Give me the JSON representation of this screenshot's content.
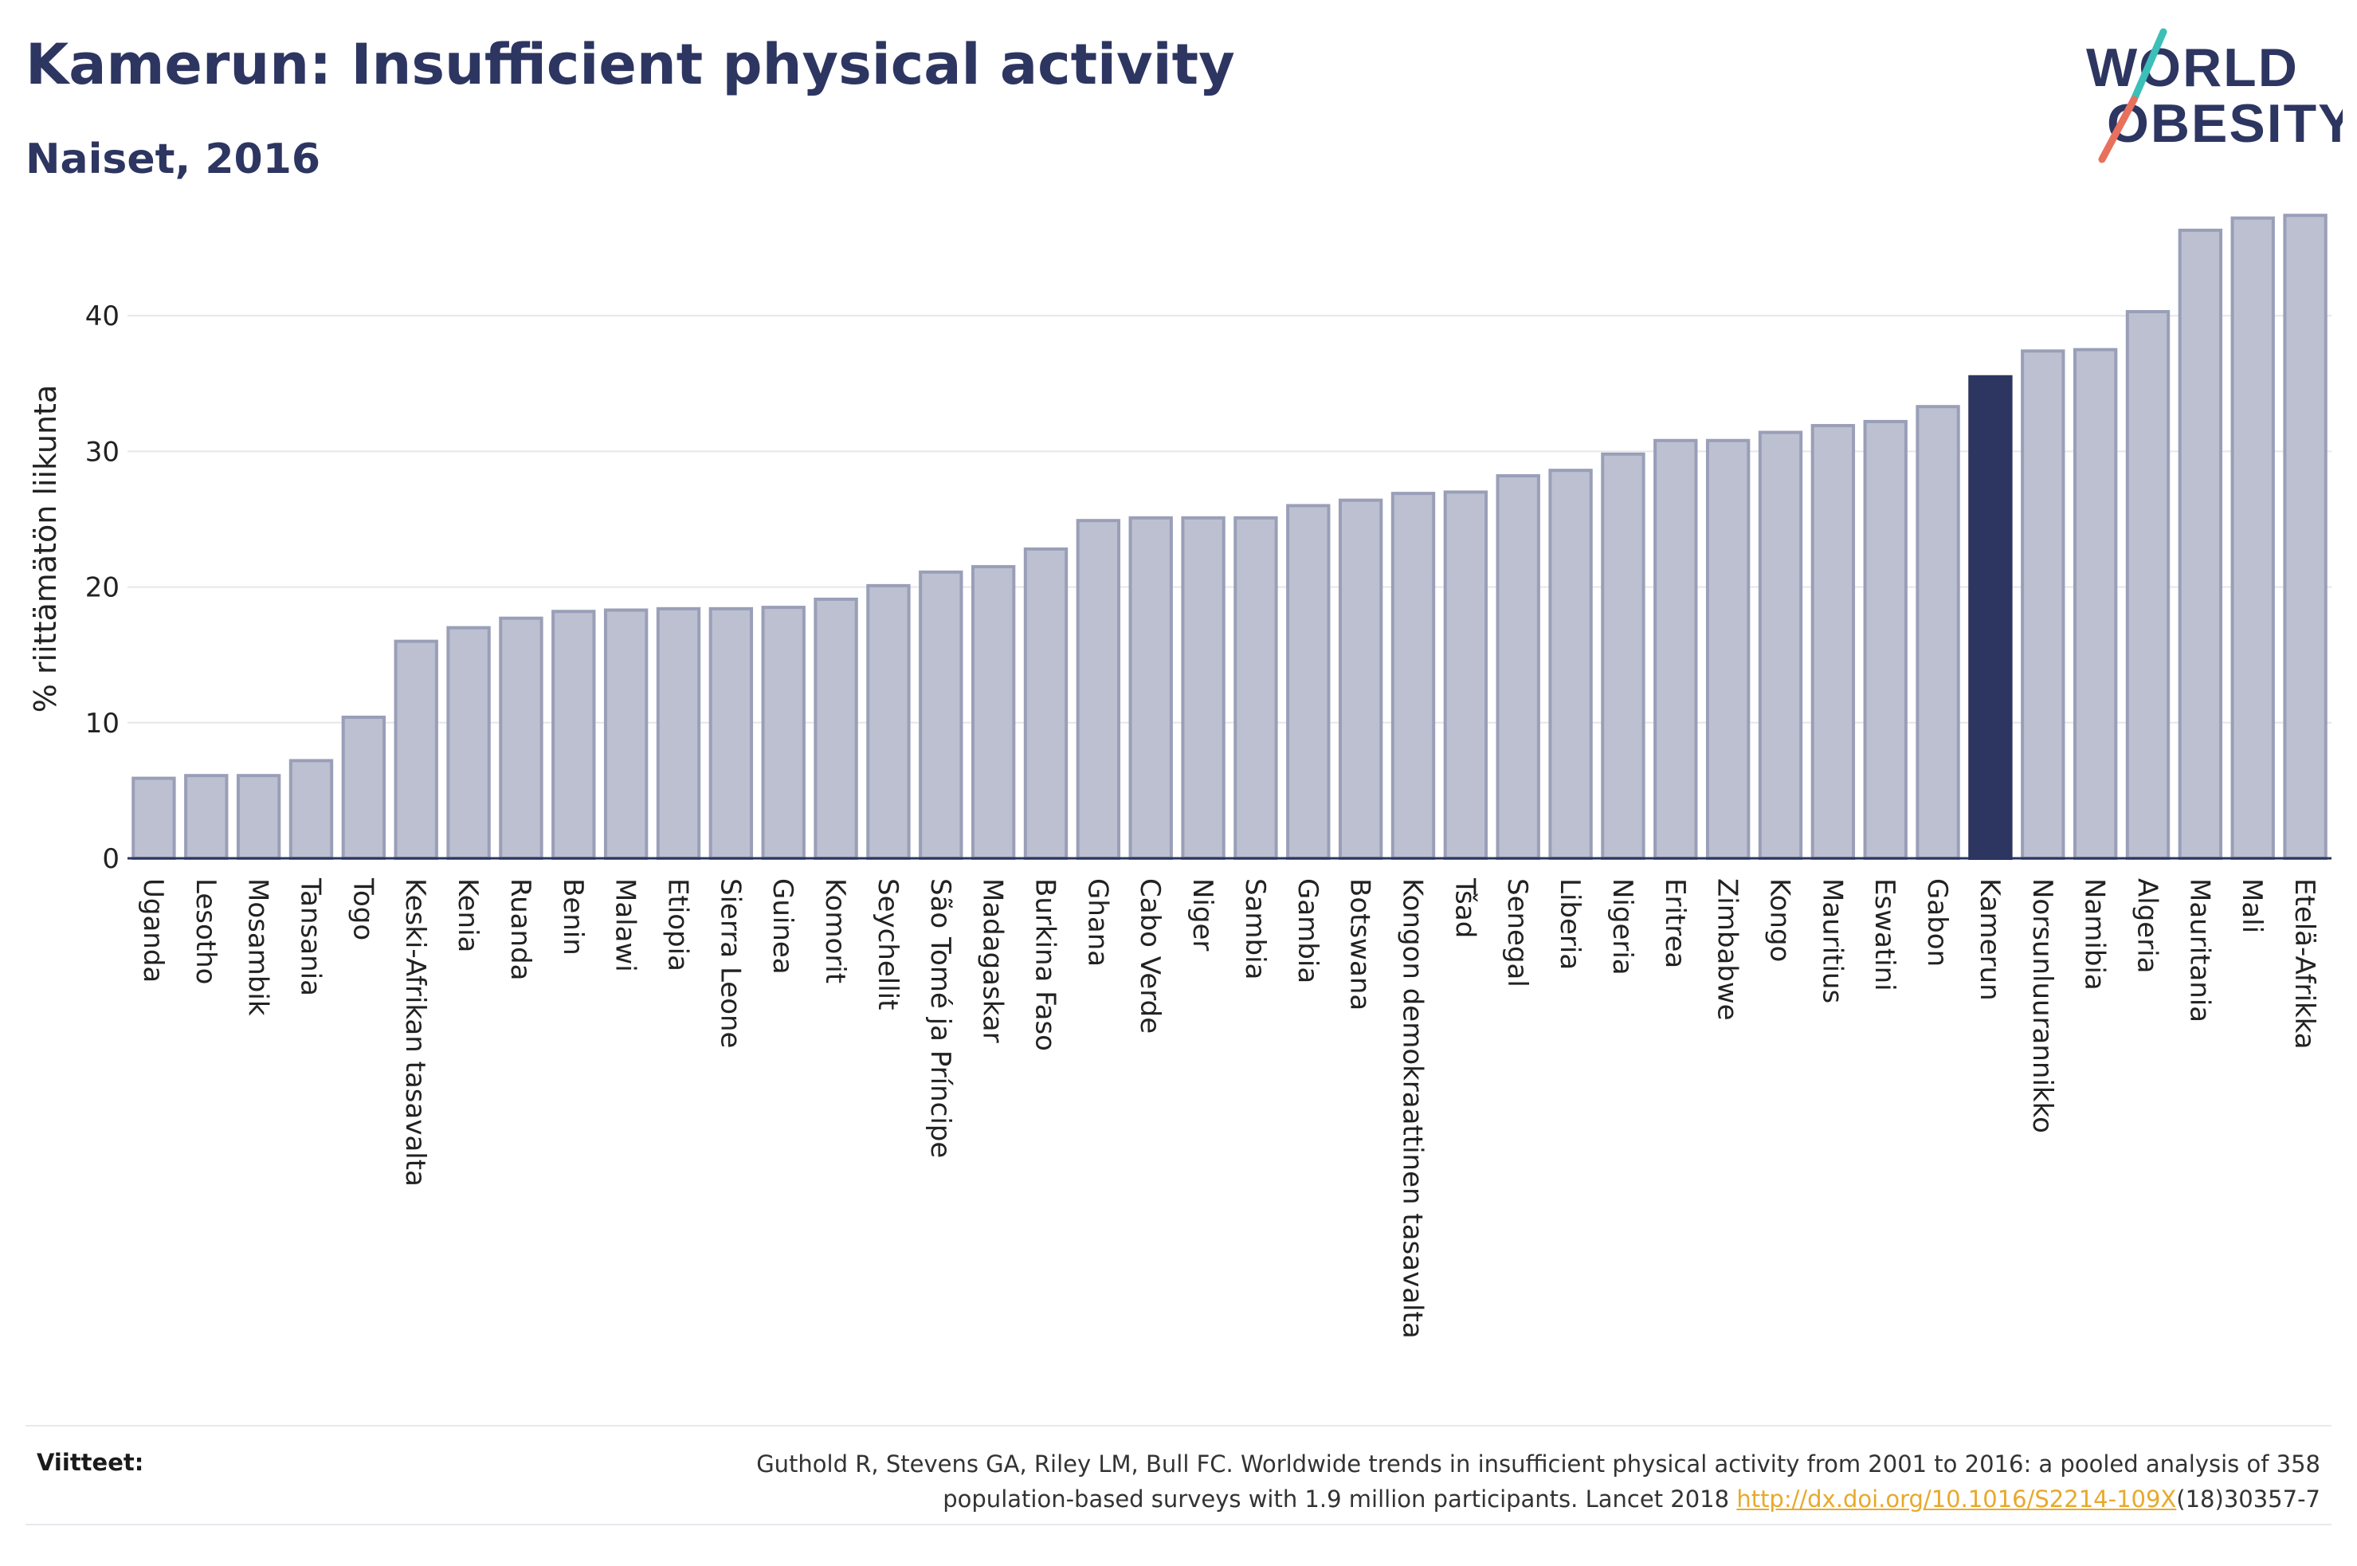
{
  "header": {
    "title": "Kamerun: Insufficient physical activity",
    "subtitle": "Naiset, 2016"
  },
  "logo": {
    "line1": "WORLD",
    "line2": "OBESITY"
  },
  "colors": {
    "bar": "#bcc0d0",
    "bar_stroke": "#9a9fb8",
    "highlight": "#2d3561",
    "text": "#2d3561",
    "grid": "#e6e6ec",
    "link": "#e8a92b"
  },
  "chart_data": {
    "type": "bar",
    "title": "Kamerun: Insufficient physical activity",
    "subtitle": "Naiset, 2016",
    "xlabel": "",
    "ylabel": "% riittämätön liikunta",
    "ylim": [
      0,
      48
    ],
    "yticks": [
      0,
      10,
      20,
      30,
      40
    ],
    "grid": true,
    "highlight": "Kamerun",
    "categories": [
      "Uganda",
      "Lesotho",
      "Mosambik",
      "Tansania",
      "Togo",
      "Keski-Afrikan tasavalta",
      "Kenia",
      "Ruanda",
      "Benin",
      "Malawi",
      "Etiopia",
      "Sierra Leone",
      "Guinea",
      "Komorit",
      "Seychellit",
      "São Tomé ja Príncipe",
      "Madagaskar",
      "Burkina Faso",
      "Ghana",
      "Cabo Verde",
      "Niger",
      "Sambia",
      "Gambia",
      "Botswana",
      "Kongon demokraattinen tasavalta",
      "Tšad",
      "Senegal",
      "Liberia",
      "Nigeria",
      "Eritrea",
      "Zimbabwe",
      "Kongo",
      "Mauritius",
      "Eswatini",
      "Gabon",
      "Kamerun",
      "Norsunluurannikko",
      "Namibia",
      "Algeria",
      "Mauritania",
      "Mali",
      "Etelä-Afrikka"
    ],
    "values": [
      5.9,
      6.1,
      6.1,
      7.2,
      10.4,
      16.0,
      17.0,
      17.7,
      18.2,
      18.3,
      18.4,
      18.4,
      18.5,
      19.1,
      20.1,
      21.1,
      21.5,
      22.8,
      24.9,
      25.1,
      25.1,
      25.1,
      26.0,
      26.4,
      26.9,
      27.0,
      28.2,
      28.6,
      29.8,
      30.8,
      30.8,
      31.4,
      31.9,
      32.2,
      33.3,
      35.5,
      37.4,
      37.5,
      40.3,
      46.3,
      47.2,
      47.4
    ]
  },
  "references": {
    "label": "Viitteet:",
    "text_line1": "Guthold R, Stevens GA, Riley LM, Bull FC. Worldwide trends in insufficient physical activity from 2001 to 2016: a pooled analysis of 358",
    "text_line2_pre": "population-based surveys with 1.9 million participants. Lancet 2018 ",
    "link": "http://dx.doi.org/10.1016/S2214-109X",
    "text_line2_post": "(18)30357-7"
  }
}
